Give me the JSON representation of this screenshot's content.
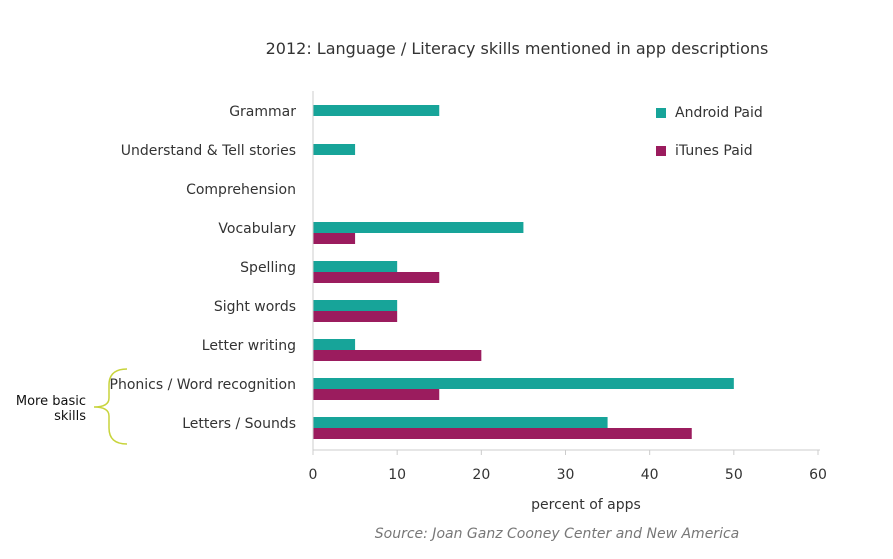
{
  "chart_data": {
    "type": "bar",
    "orientation": "horizontal",
    "title": "2012: Language / Literacy skills mentioned in app descriptions",
    "xlabel": "percent of apps",
    "ylabel": "",
    "xlim": [
      0,
      60
    ],
    "xticks": [
      0,
      10,
      20,
      30,
      40,
      50,
      60
    ],
    "grid": false,
    "legend_position": "top-right",
    "categories": [
      "Grammar",
      "Understand & Tell stories",
      "Comprehension",
      "Vocabulary",
      "Spelling",
      "Sight words",
      "Letter writing",
      "Phonics / Word recognition",
      "Letters / Sounds"
    ],
    "series": [
      {
        "name": "Android Paid",
        "color": "#17a499",
        "values": [
          15,
          5,
          0,
          25,
          10,
          10,
          5,
          50,
          35
        ]
      },
      {
        "name": "iTunes Paid",
        "color": "#9b1c5e",
        "values": [
          0,
          0,
          0,
          5,
          15,
          10,
          20,
          15,
          45
        ]
      }
    ],
    "annotation": {
      "line1": "More basic",
      "line2": "skills",
      "bracket_color": "#c8d43c"
    },
    "source": "Source: Joan Ganz Cooney Center and New America"
  }
}
